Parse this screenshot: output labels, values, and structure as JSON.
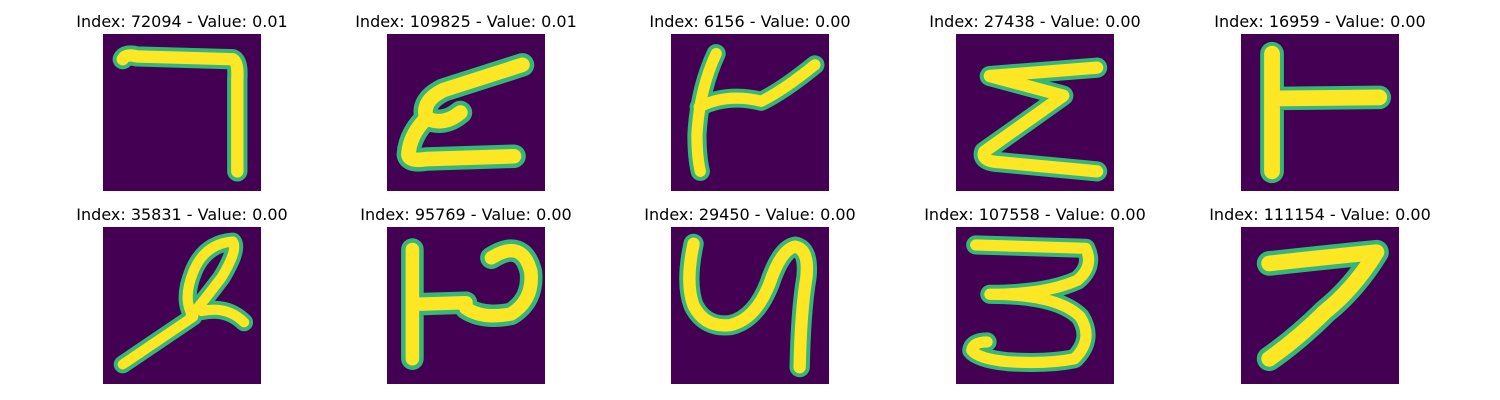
{
  "figure": {
    "panels": [
      {
        "title": "Index: 72094 - Value: 0.01",
        "glyph": "digit-7-like"
      },
      {
        "title": "Index: 109825 - Value: 0.01",
        "glyph": "letter-e-like"
      },
      {
        "title": "Index: 6156 - Value: 0.00",
        "glyph": "digit-4-like"
      },
      {
        "title": "Index: 27438 - Value: 0.00",
        "glyph": "letter-e-like"
      },
      {
        "title": "Index: 16959 - Value: 0.00",
        "glyph": "letter-t-like"
      },
      {
        "title": "Index: 35831 - Value: 0.00",
        "glyph": "digit-2-like"
      },
      {
        "title": "Index: 95769 - Value: 0.00",
        "glyph": "letter-p-like"
      },
      {
        "title": "Index: 29450 - Value: 0.00",
        "glyph": "digit-4-like"
      },
      {
        "title": "Index: 107558 - Value: 0.00",
        "glyph": "digit-3-like"
      },
      {
        "title": "Index: 111154 - Value: 0.00",
        "glyph": "digit-7-like"
      }
    ]
  },
  "colors": {
    "background": "#440154",
    "stroke_core": "#fde725",
    "stroke_edge": "#35b779"
  }
}
